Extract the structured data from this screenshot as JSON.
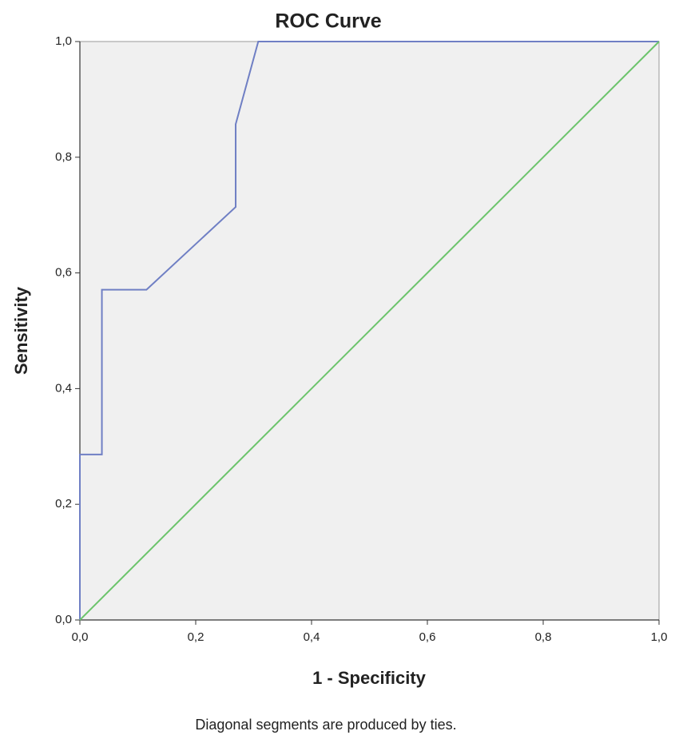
{
  "chart_data": {
    "type": "line",
    "title": "ROC Curve",
    "x_label": "1 - Specificity",
    "y_label": "Sensitivity",
    "annotation": "Diagonal segments are produced by ties.",
    "xlim": [
      0,
      1
    ],
    "ylim": [
      0,
      1
    ],
    "xticks": [
      {
        "value": 0,
        "label": "0,0"
      },
      {
        "value": 0.2,
        "label": "0,2"
      },
      {
        "value": 0.4,
        "label": "0,4"
      },
      {
        "value": 0.6,
        "label": "0,6"
      },
      {
        "value": 0.8,
        "label": "0,8"
      },
      {
        "value": 1,
        "label": "1,0"
      }
    ],
    "yticks": [
      {
        "value": 0,
        "label": "0,0"
      },
      {
        "value": 0.2,
        "label": "0,2"
      },
      {
        "value": 0.4,
        "label": "0,4"
      },
      {
        "value": 0.6,
        "label": "0,6"
      },
      {
        "value": 0.8,
        "label": "0,8"
      },
      {
        "value": 1,
        "label": "1,0"
      }
    ],
    "grid": false,
    "series": [
      {
        "color": "#6f7fc4",
        "x": [
          0,
          0,
          0.038,
          0.038,
          0.115,
          0.269,
          0.269,
          0.308,
          1
        ],
        "values": [
          0,
          0.286,
          0.286,
          0.571,
          0.571,
          0.714,
          0.857,
          1,
          1
        ]
      },
      {
        "color": "#6cc46c",
        "x": [
          0,
          1
        ],
        "values": [
          0,
          1
        ]
      }
    ]
  }
}
